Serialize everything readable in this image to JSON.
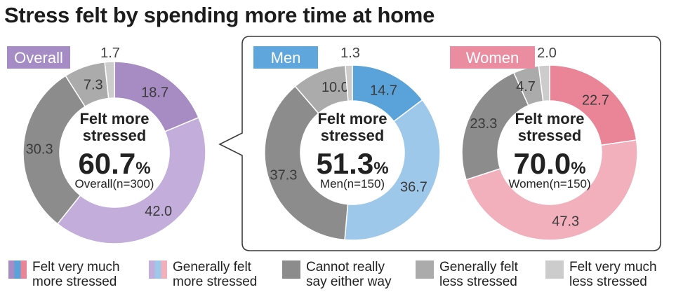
{
  "chart_data": {
    "type": "donut",
    "title": "Stress felt by spending more time at home",
    "center_heading": "Felt more\nstressed",
    "legend": [
      {
        "key": "very_more",
        "label": "Felt very much\nmore stressed"
      },
      {
        "key": "gen_more",
        "label": "Generally felt\nmore stressed"
      },
      {
        "key": "neutral",
        "label": "Cannot really\nsay either way"
      },
      {
        "key": "gen_less",
        "label": "Generally felt\nless stressed"
      },
      {
        "key": "very_less",
        "label": "Felt very much\nless stressed"
      }
    ],
    "charts": [
      {
        "id": "overall",
        "group_label": "Overall",
        "percent_number": "60.7",
        "percent_sign": "%",
        "base_label": "Overall",
        "base_n": "(n=300)",
        "values": [
          18.7,
          42.0,
          30.3,
          7.3,
          1.7
        ],
        "value_labels": [
          "18.7",
          "42.0",
          "30.3",
          "7.3",
          "1.7"
        ],
        "colors": [
          "#a78bc3",
          "#c3addb",
          "#8c8c8c",
          "#ababab",
          "#cccccc"
        ],
        "badge_color": "#a68cc4"
      },
      {
        "id": "men",
        "group_label": "Men",
        "percent_number": "51.3",
        "percent_sign": "%",
        "base_label": "Men",
        "base_n": "(n=150)",
        "values": [
          14.7,
          36.7,
          37.3,
          10.0,
          1.3
        ],
        "value_labels": [
          "14.7",
          "36.7",
          "37.3",
          "10.0",
          "1.3"
        ],
        "colors": [
          "#5aa3da",
          "#9ec8ea",
          "#8c8c8c",
          "#ababab",
          "#cccccc"
        ],
        "badge_color": "#5ea6dc"
      },
      {
        "id": "women",
        "group_label": "Women",
        "percent_number": "70.0",
        "percent_sign": "%",
        "base_label": "Women",
        "base_n": "(n=150)",
        "values": [
          22.7,
          47.3,
          23.3,
          4.7,
          2.0
        ],
        "value_labels": [
          "22.7",
          "47.3",
          "23.3",
          "4.7",
          "2.0"
        ],
        "colors": [
          "#ea8597",
          "#f2afbc",
          "#8c8c8c",
          "#ababab",
          "#cccccc"
        ],
        "badge_color": "#eb8da0"
      }
    ],
    "legend_colors": {
      "very_more_stripes": [
        "#a78bc3",
        "#5aa3da",
        "#ea8597"
      ],
      "gen_more_stripes": [
        "#c3addb",
        "#9ec8ea",
        "#f2afbc"
      ],
      "neutral": "#8c8c8c",
      "gen_less": "#ababab",
      "very_less": "#cccccc"
    }
  }
}
